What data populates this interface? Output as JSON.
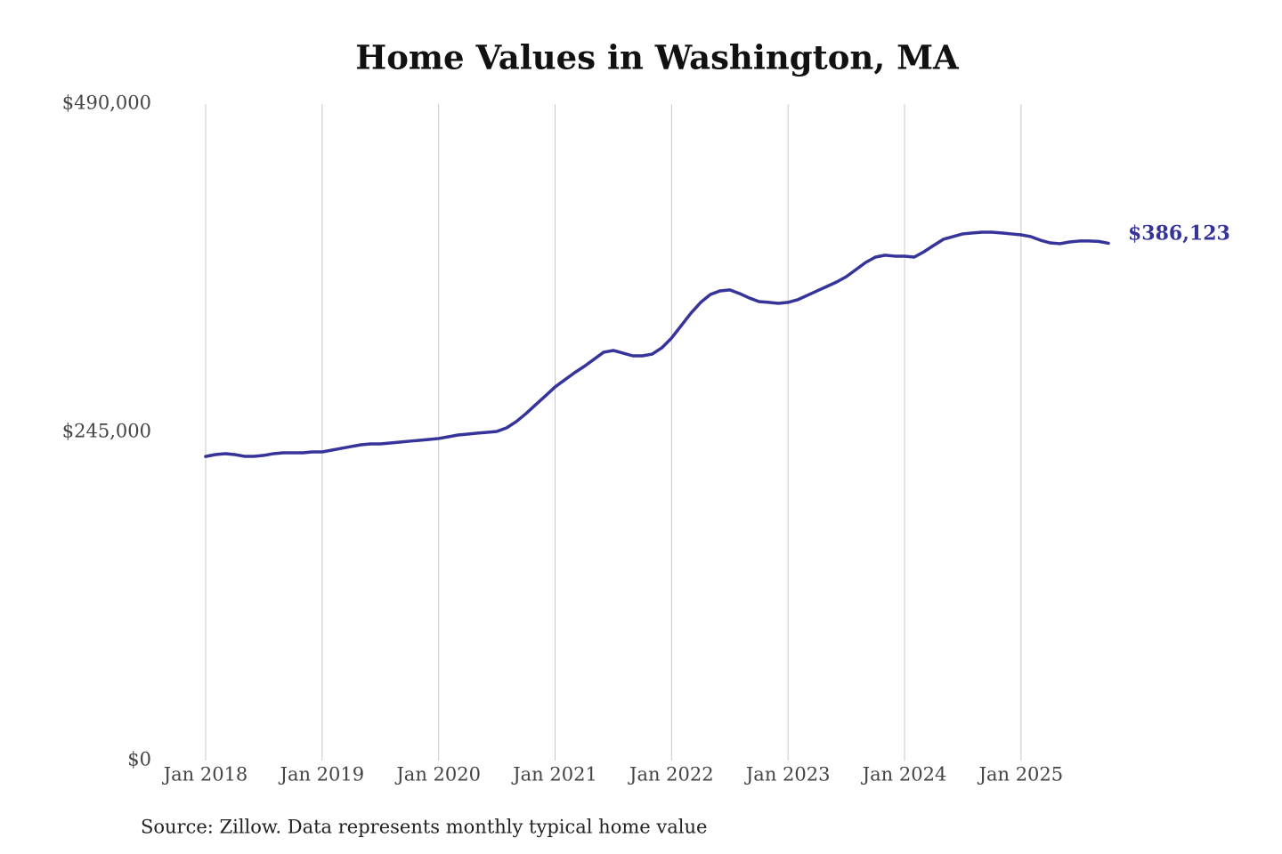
{
  "chart_data": {
    "type": "line",
    "title": "Home Values in Washington, MA",
    "source": "Source: Zillow. Data represents monthly typical home value",
    "x": [
      "2018-01",
      "2018-02",
      "2018-03",
      "2018-04",
      "2018-05",
      "2018-06",
      "2018-07",
      "2018-08",
      "2018-09",
      "2018-10",
      "2018-11",
      "2018-12",
      "2019-01",
      "2019-02",
      "2019-03",
      "2019-04",
      "2019-05",
      "2019-06",
      "2019-07",
      "2019-08",
      "2019-09",
      "2019-10",
      "2019-11",
      "2019-12",
      "2020-01",
      "2020-02",
      "2020-03",
      "2020-04",
      "2020-05",
      "2020-06",
      "2020-07",
      "2020-08",
      "2020-09",
      "2020-10",
      "2020-11",
      "2020-12",
      "2021-01",
      "2021-02",
      "2021-03",
      "2021-04",
      "2021-05",
      "2021-06",
      "2021-07",
      "2021-08",
      "2021-09",
      "2021-10",
      "2021-11",
      "2021-12",
      "2022-01",
      "2022-02",
      "2022-03",
      "2022-04",
      "2022-05",
      "2022-06",
      "2022-07",
      "2022-08",
      "2022-09",
      "2022-10",
      "2022-11",
      "2022-12",
      "2023-01",
      "2023-02",
      "2023-03",
      "2023-04",
      "2023-05",
      "2023-06",
      "2023-07",
      "2023-08",
      "2023-09",
      "2023-10",
      "2023-11",
      "2023-12",
      "2024-01",
      "2024-02",
      "2024-03",
      "2024-04",
      "2024-05",
      "2024-06",
      "2024-07",
      "2024-08",
      "2024-09",
      "2024-10",
      "2024-11",
      "2024-12",
      "2025-01",
      "2025-02",
      "2025-03",
      "2025-04",
      "2025-05",
      "2025-06",
      "2025-07",
      "2025-08",
      "2025-09",
      "2025-10"
    ],
    "series": [
      {
        "name": "Home value",
        "color": "#36339a",
        "values": [
          227000,
          228400,
          229100,
          228400,
          227100,
          227100,
          227800,
          229100,
          229700,
          229700,
          229700,
          230400,
          230400,
          231700,
          233100,
          234400,
          235700,
          236400,
          236400,
          237000,
          237700,
          238400,
          239000,
          239700,
          240400,
          241700,
          243000,
          243700,
          244400,
          245000,
          245700,
          248300,
          253000,
          259000,
          265600,
          272200,
          278900,
          284200,
          289500,
          294200,
          299500,
          304800,
          306100,
          304100,
          302100,
          302100,
          303400,
          308100,
          315400,
          324700,
          334000,
          342000,
          347900,
          350600,
          351300,
          348600,
          345300,
          342600,
          342000,
          341300,
          342000,
          344000,
          347300,
          350600,
          353900,
          357200,
          361200,
          366500,
          371800,
          375800,
          377200,
          376500,
          376500,
          375800,
          379800,
          384500,
          389100,
          391100,
          393100,
          393800,
          394400,
          394400,
          393800,
          393100,
          392400,
          391100,
          388400,
          386400,
          385800,
          387100,
          387800,
          387800,
          387500,
          386123
        ],
        "end_label": "$386,123"
      }
    ],
    "xlim": [
      "2018-01",
      "2025-10"
    ],
    "xticks": [
      {
        "value": "2018-01",
        "label": "Jan 2018"
      },
      {
        "value": "2019-01",
        "label": "Jan 2019"
      },
      {
        "value": "2020-01",
        "label": "Jan 2020"
      },
      {
        "value": "2021-01",
        "label": "Jan 2021"
      },
      {
        "value": "2022-01",
        "label": "Jan 2022"
      },
      {
        "value": "2023-01",
        "label": "Jan 2023"
      },
      {
        "value": "2024-01",
        "label": "Jan 2024"
      },
      {
        "value": "2025-01",
        "label": "Jan 2025"
      }
    ],
    "ylim": [
      0,
      490000
    ],
    "yticks": [
      {
        "value": 0,
        "label": "$0"
      },
      {
        "value": 245000,
        "label": "$245,000"
      },
      {
        "value": 490000,
        "label": "$490,000"
      }
    ],
    "grid": "x"
  }
}
